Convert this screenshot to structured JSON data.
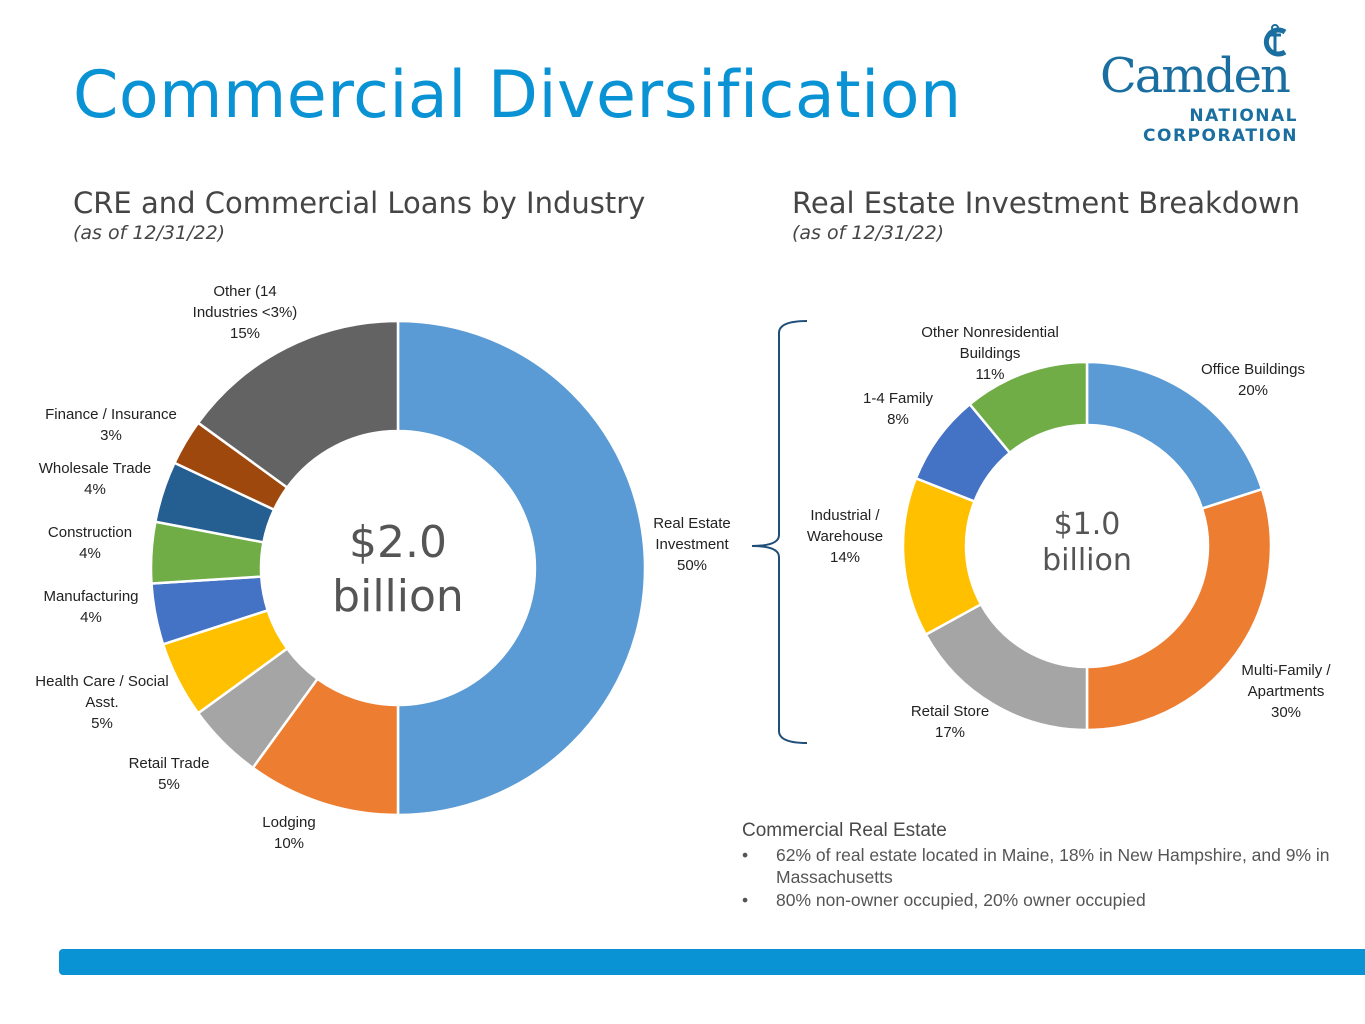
{
  "page": {
    "title": "Commercial Diversification",
    "logo": {
      "word": "Camden",
      "line1": "NATIONAL",
      "line2": "CORPORATION"
    },
    "footer_color": "#0a93d4",
    "title_color": "#0a93d4"
  },
  "left": {
    "subtitle": "CRE and Commercial Loans by Industry",
    "as_of": "(as of 12/31/22)"
  },
  "right": {
    "subtitle": "Real Estate Investment Breakdown",
    "as_of": "(as of 12/31/22)"
  },
  "notes": {
    "heading": "Commercial Real Estate",
    "bullets": [
      "62% of real estate located in Maine, 18% in New Hampshire, and 9% in Massachusetts",
      "80% non-owner occupied, 20% owner occupied"
    ]
  },
  "chart_data": [
    {
      "type": "pie",
      "donut": true,
      "center_label": [
        "$2.0",
        "billion"
      ],
      "slices": [
        {
          "label": [
            "Real Estate",
            "Investment",
            "50%"
          ],
          "value": 50,
          "color": "#5b9bd5"
        },
        {
          "label": [
            "Lodging",
            "10%"
          ],
          "value": 10,
          "color": "#ed7d31"
        },
        {
          "label": [
            "Retail Trade",
            "5%"
          ],
          "value": 5,
          "color": "#a5a5a5"
        },
        {
          "label": [
            "Health Care / Social",
            "Asst.",
            "5%"
          ],
          "value": 5,
          "color": "#ffc000"
        },
        {
          "label": [
            "Manufacturing",
            "4%"
          ],
          "value": 4,
          "color": "#4472c4"
        },
        {
          "label": [
            "Construction",
            "4%"
          ],
          "value": 4,
          "color": "#70ad47"
        },
        {
          "label": [
            "Wholesale Trade",
            "4%"
          ],
          "value": 4,
          "color": "#255e91"
        },
        {
          "label": [
            "Finance / Insurance",
            "3%"
          ],
          "value": 3,
          "color": "#9e480e"
        },
        {
          "label": [
            "Other (14",
            "Industries <3%)",
            "15%"
          ],
          "value": 15,
          "color": "#636363"
        }
      ]
    },
    {
      "type": "pie",
      "donut": true,
      "center_label": [
        "$1.0",
        "billion"
      ],
      "slices": [
        {
          "label": [
            "Office Buildings",
            "20%"
          ],
          "value": 20,
          "color": "#5b9bd5"
        },
        {
          "label": [
            "Multi-Family /",
            "Apartments",
            "30%"
          ],
          "value": 30,
          "color": "#ed7d31"
        },
        {
          "label": [
            "Retail Store",
            "17%"
          ],
          "value": 17,
          "color": "#a5a5a5"
        },
        {
          "label": [
            "Industrial /",
            "Warehouse",
            "14%"
          ],
          "value": 14,
          "color": "#ffc000"
        },
        {
          "label": [
            "1-4 Family",
            "8%"
          ],
          "value": 8,
          "color": "#4472c4"
        },
        {
          "label": [
            "Other Nonresidential",
            "Buildings",
            "11%"
          ],
          "value": 11,
          "color": "#70ad47"
        }
      ]
    }
  ]
}
